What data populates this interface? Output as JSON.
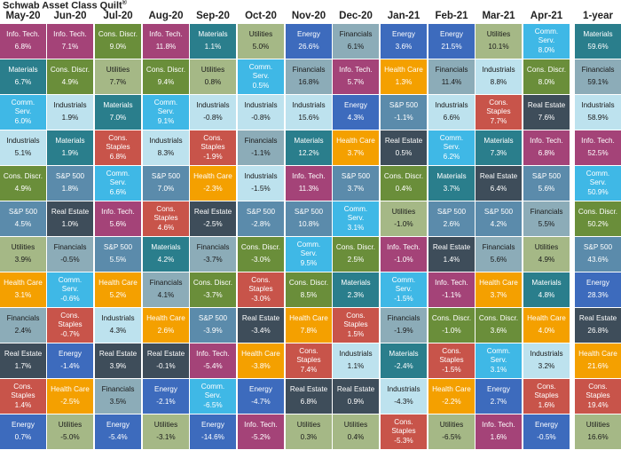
{
  "title": "Schwab Asset Class Quilt",
  "title_mark": "®",
  "colors": {
    "Info. Tech.": "#a44378",
    "Materials": "#2a7e8c",
    "Comm. Serv.": "#3fb8e6",
    "Industrials": "#bde2ee",
    "Cons. Discr.": "#6a8e3a",
    "S&P 500": "#5b8bab",
    "Utilities": "#a5b886",
    "Health Care": "#f4a000",
    "Financials": "#8cacb8",
    "Real Estate": "#3e4d5a",
    "Cons. Staples": "#c8544a",
    "Energy": "#3d6bbd"
  },
  "dark_text_labels": [
    "Industrials",
    "Utilities",
    "Financials"
  ],
  "chart_data": {
    "type": "table",
    "columns": [
      "May-20",
      "Jun-20",
      "Jul-20",
      "Aug-20",
      "Sep-20",
      "Oct-20",
      "Nov-20",
      "Dec-20",
      "Jan-21",
      "Feb-21",
      "Mar-21",
      "Apr-21",
      "1-year"
    ],
    "cells": [
      [
        [
          "Info. Tech.",
          "6.8%"
        ],
        [
          "Materials",
          "6.7%"
        ],
        [
          "Comm. Serv.",
          "6.0%"
        ],
        [
          "Industrials",
          "5.1%"
        ],
        [
          "Cons. Discr.",
          "4.9%"
        ],
        [
          "S&P 500",
          "4.5%"
        ],
        [
          "Utilities",
          "3.9%"
        ],
        [
          "Health Care",
          "3.1%"
        ],
        [
          "Financials",
          "2.4%"
        ],
        [
          "Real Estate",
          "1.7%"
        ],
        [
          "Cons. Staples",
          "1.4%"
        ],
        [
          "Energy",
          "0.7%"
        ]
      ],
      [
        [
          "Info. Tech.",
          "7.1%"
        ],
        [
          "Cons. Discr.",
          "4.9%"
        ],
        [
          "Industrials",
          "1.9%"
        ],
        [
          "Materials",
          "1.9%"
        ],
        [
          "S&P 500",
          "1.8%"
        ],
        [
          "Real Estate",
          "1.0%"
        ],
        [
          "Financials",
          "-0.5%"
        ],
        [
          "Comm. Serv.",
          "-0.6%"
        ],
        [
          "Cons. Staples",
          "-0.7%"
        ],
        [
          "Energy",
          "-1.4%"
        ],
        [
          "Health Care",
          "-2.5%"
        ],
        [
          "Utilities",
          "-5.0%"
        ]
      ],
      [
        [
          "Cons. Discr.",
          "9.0%"
        ],
        [
          "Utilities",
          "7.7%"
        ],
        [
          "Materials",
          "7.0%"
        ],
        [
          "Cons. Staples",
          "6.8%"
        ],
        [
          "Comm. Serv.",
          "6.6%"
        ],
        [
          "Info. Tech.",
          "5.6%"
        ],
        [
          "S&P 500",
          "5.5%"
        ],
        [
          "Health Care",
          "5.2%"
        ],
        [
          "Industrials",
          "4.3%"
        ],
        [
          "Real Estate",
          "3.9%"
        ],
        [
          "Financials",
          "3.5%"
        ],
        [
          "Energy",
          "-5.4%"
        ]
      ],
      [
        [
          "Info. Tech.",
          "11.8%"
        ],
        [
          "Cons. Discr.",
          "9.4%"
        ],
        [
          "Comm. Serv.",
          "9.1%"
        ],
        [
          "Industrials",
          "8.3%"
        ],
        [
          "S&P 500",
          "7.0%"
        ],
        [
          "Cons. Staples",
          "4.6%"
        ],
        [
          "Materials",
          "4.2%"
        ],
        [
          "Financials",
          "4.1%"
        ],
        [
          "Health Care",
          "2.6%"
        ],
        [
          "Real Estate",
          "-0.1%"
        ],
        [
          "Energy",
          "-2.1%"
        ],
        [
          "Utilities",
          "-3.1%"
        ]
      ],
      [
        [
          "Materials",
          "1.1%"
        ],
        [
          "Utilities",
          "0.8%"
        ],
        [
          "Industrials",
          "-0.8%"
        ],
        [
          "Cons. Staples",
          "-1.9%"
        ],
        [
          "Health Care",
          "-2.3%"
        ],
        [
          "Real Estate",
          "-2.5%"
        ],
        [
          "Financials",
          "-3.7%"
        ],
        [
          "Cons. Discr.",
          "-3.7%"
        ],
        [
          "S&P 500",
          "-3.9%"
        ],
        [
          "Info. Tech.",
          "-5.4%"
        ],
        [
          "Comm. Serv.",
          "-6.5%"
        ],
        [
          "Energy",
          "-14.6%"
        ]
      ],
      [
        [
          "Utilities",
          "5.0%"
        ],
        [
          "Comm. Serv.",
          "0.5%"
        ],
        [
          "Industrials",
          "-0.8%"
        ],
        [
          "Financials",
          "-1.1%"
        ],
        [
          "Industrials",
          "-1.5%"
        ],
        [
          "S&P 500",
          "-2.8%"
        ],
        [
          "Cons. Discr.",
          "-3.0%"
        ],
        [
          "Cons. Staples",
          "-3.0%"
        ],
        [
          "Real Estate",
          "-3.4%"
        ],
        [
          "Health Care",
          "-3.8%"
        ],
        [
          "Energy",
          "-4.7%"
        ],
        [
          "Info. Tech.",
          "-5.2%"
        ]
      ],
      [
        [
          "Energy",
          "26.6%"
        ],
        [
          "Financials",
          "16.8%"
        ],
        [
          "Industrials",
          "15.6%"
        ],
        [
          "Materials",
          "12.2%"
        ],
        [
          "Info. Tech.",
          "11.3%"
        ],
        [
          "S&P 500",
          "10.8%"
        ],
        [
          "Comm. Serv.",
          "9.5%"
        ],
        [
          "Cons. Discr.",
          "8.5%"
        ],
        [
          "Health Care",
          "7.8%"
        ],
        [
          "Cons. Staples",
          "7.4%"
        ],
        [
          "Real Estate",
          "6.8%"
        ],
        [
          "Utilities",
          "0.3%"
        ]
      ],
      [
        [
          "Financials",
          "6.1%"
        ],
        [
          "Info. Tech.",
          "5.7%"
        ],
        [
          "Energy",
          "4.3%"
        ],
        [
          "Health Care",
          "3.7%"
        ],
        [
          "S&P 500",
          "3.7%"
        ],
        [
          "Comm. Serv.",
          "3.1%"
        ],
        [
          "Cons. Discr.",
          "2.5%"
        ],
        [
          "Materials",
          "2.3%"
        ],
        [
          "Cons. Staples",
          "1.5%"
        ],
        [
          "Industrials",
          "1.1%"
        ],
        [
          "Real Estate",
          "0.9%"
        ],
        [
          "Utilities",
          "0.4%"
        ]
      ],
      [
        [
          "Energy",
          "3.6%"
        ],
        [
          "Health Care",
          "1.3%"
        ],
        [
          "S&P 500",
          "-1.1%"
        ],
        [
          "Real Estate",
          "0.5%"
        ],
        [
          "Cons. Discr.",
          "0.4%"
        ],
        [
          "Utilities",
          "-1.0%"
        ],
        [
          "Info. Tech.",
          "-1.0%"
        ],
        [
          "Comm. Serv.",
          "-1.5%"
        ],
        [
          "Financials",
          "-1.9%"
        ],
        [
          "Materials",
          "-2.4%"
        ],
        [
          "Industrials",
          "-4.3%"
        ],
        [
          "Cons. Staples",
          "-5.3%"
        ]
      ],
      [
        [
          "Energy",
          "21.5%"
        ],
        [
          "Financials",
          "11.4%"
        ],
        [
          "Industrials",
          "6.6%"
        ],
        [
          "Comm. Serv.",
          "6.2%"
        ],
        [
          "Materials",
          "3.7%"
        ],
        [
          "S&P 500",
          "2.6%"
        ],
        [
          "Real Estate",
          "1.4%"
        ],
        [
          "Info. Tech.",
          "-1.1%"
        ],
        [
          "Cons. Discr.",
          "-1.0%"
        ],
        [
          "Cons. Staples",
          "-1.5%"
        ],
        [
          "Health Care",
          "-2.2%"
        ],
        [
          "Utilities",
          "-6.5%"
        ]
      ],
      [
        [
          "Utilities",
          "10.1%"
        ],
        [
          "Industrials",
          "8.8%"
        ],
        [
          "Cons. Staples",
          "7.7%"
        ],
        [
          "Materials",
          "7.3%"
        ],
        [
          "Real Estate",
          "6.4%"
        ],
        [
          "S&P 500",
          "4.2%"
        ],
        [
          "Financials",
          "5.6%"
        ],
        [
          "Health Care",
          "3.7%"
        ],
        [
          "Cons. Discr.",
          "3.6%"
        ],
        [
          "Comm. Serv.",
          "3.1%"
        ],
        [
          "Energy",
          "2.7%"
        ],
        [
          "Info. Tech.",
          "1.6%"
        ]
      ],
      [
        [
          "Comm. Serv.",
          "8.0%"
        ],
        [
          "Cons. Discr.",
          "8.0%"
        ],
        [
          "Real Estate",
          "7.6%"
        ],
        [
          "Info. Tech.",
          "6.8%"
        ],
        [
          "S&P 500",
          "5.6%"
        ],
        [
          "Financials",
          "5.5%"
        ],
        [
          "Utilities",
          "4.9%"
        ],
        [
          "Materials",
          "4.8%"
        ],
        [
          "Health Care",
          "4.0%"
        ],
        [
          "Industrials",
          "3.2%"
        ],
        [
          "Cons. Staples",
          "1.6%"
        ],
        [
          "Energy",
          "-0.5%"
        ]
      ],
      [
        [
          "Materials",
          "59.6%"
        ],
        [
          "Financials",
          "59.1%"
        ],
        [
          "Industrials",
          "58.9%"
        ],
        [
          "Info. Tech.",
          "52.5%"
        ],
        [
          "Comm. Serv.",
          "50.9%"
        ],
        [
          "Cons. Discr.",
          "50.2%"
        ],
        [
          "S&P 500",
          "43.6%"
        ],
        [
          "Energy",
          "28.3%"
        ],
        [
          "Real Estate",
          "26.8%"
        ],
        [
          "Health Care",
          "21.6%"
        ],
        [
          "Cons. Staples",
          "19.4%"
        ],
        [
          "Utilities",
          "16.6%"
        ]
      ]
    ]
  }
}
